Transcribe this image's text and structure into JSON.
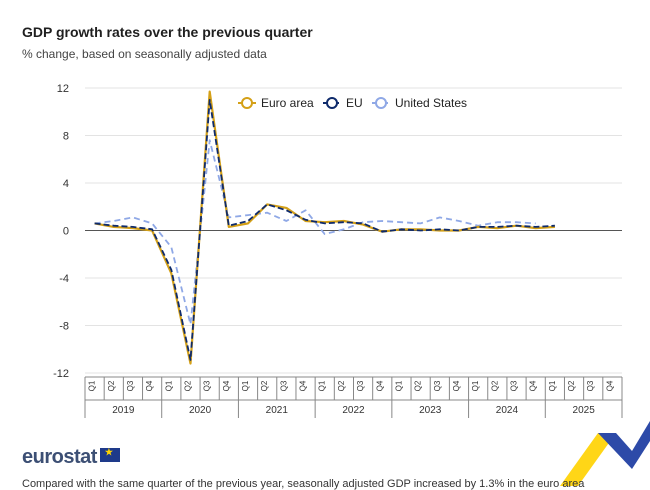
{
  "header": {
    "title": "GDP growth rates over the previous quarter",
    "subtitle": "% change, based on seasonally adjusted data"
  },
  "footer": {
    "logo": "eurostat",
    "note": "Compared with the same quarter of the previous year, seasonally adjusted GDP increased by 1.3% in the euro area"
  },
  "colors": {
    "euro_area": "#d4a017",
    "eu": "#0e2a6b",
    "us": "#8fa8e6"
  },
  "chart_data": {
    "type": "line",
    "title": "GDP growth rates over the previous quarter",
    "ylabel": "% change",
    "ylim": [
      -12,
      12
    ],
    "yticks": [
      12,
      8,
      4,
      0,
      -4,
      -8,
      -12
    ],
    "quarters": [
      "Q1",
      "Q2",
      "Q3",
      "Q4",
      "Q1",
      "Q2",
      "Q3",
      "Q4",
      "Q1",
      "Q2",
      "Q3",
      "Q4",
      "Q1",
      "Q2",
      "Q3",
      "Q4",
      "Q1",
      "Q2",
      "Q3",
      "Q4",
      "Q1",
      "Q2",
      "Q3",
      "Q4",
      "Q1",
      "Q2",
      "Q3",
      "Q4"
    ],
    "years": [
      "2019",
      "2020",
      "2021",
      "2022",
      "2023",
      "2024",
      "2025"
    ],
    "series": [
      {
        "name": "Euro area",
        "key": "euro_area",
        "values": [
          0.6,
          0.3,
          0.2,
          0.0,
          -3.6,
          -11.2,
          11.7,
          0.3,
          0.6,
          2.2,
          1.9,
          0.8,
          0.7,
          0.8,
          0.5,
          -0.1,
          0.1,
          0.1,
          0.0,
          0.0,
          0.3,
          0.2,
          0.4,
          0.2,
          0.3,
          null,
          null,
          null
        ]
      },
      {
        "name": "EU",
        "key": "eu",
        "values": [
          0.6,
          0.4,
          0.3,
          0.1,
          -3.3,
          -10.9,
          11.0,
          0.4,
          0.8,
          2.2,
          1.7,
          0.9,
          0.6,
          0.7,
          0.6,
          -0.1,
          0.1,
          0.0,
          0.1,
          0.0,
          0.3,
          0.3,
          0.4,
          0.3,
          0.4,
          null,
          null,
          null
        ]
      },
      {
        "name": "United States",
        "key": "us",
        "values": [
          0.6,
          0.8,
          1.1,
          0.6,
          -1.4,
          -7.9,
          7.6,
          1.1,
          1.3,
          1.5,
          0.8,
          1.7,
          -0.3,
          0.1,
          0.7,
          0.8,
          0.7,
          0.6,
          1.1,
          0.8,
          0.4,
          0.7,
          0.7,
          0.6,
          null,
          null,
          null,
          null
        ]
      }
    ]
  }
}
